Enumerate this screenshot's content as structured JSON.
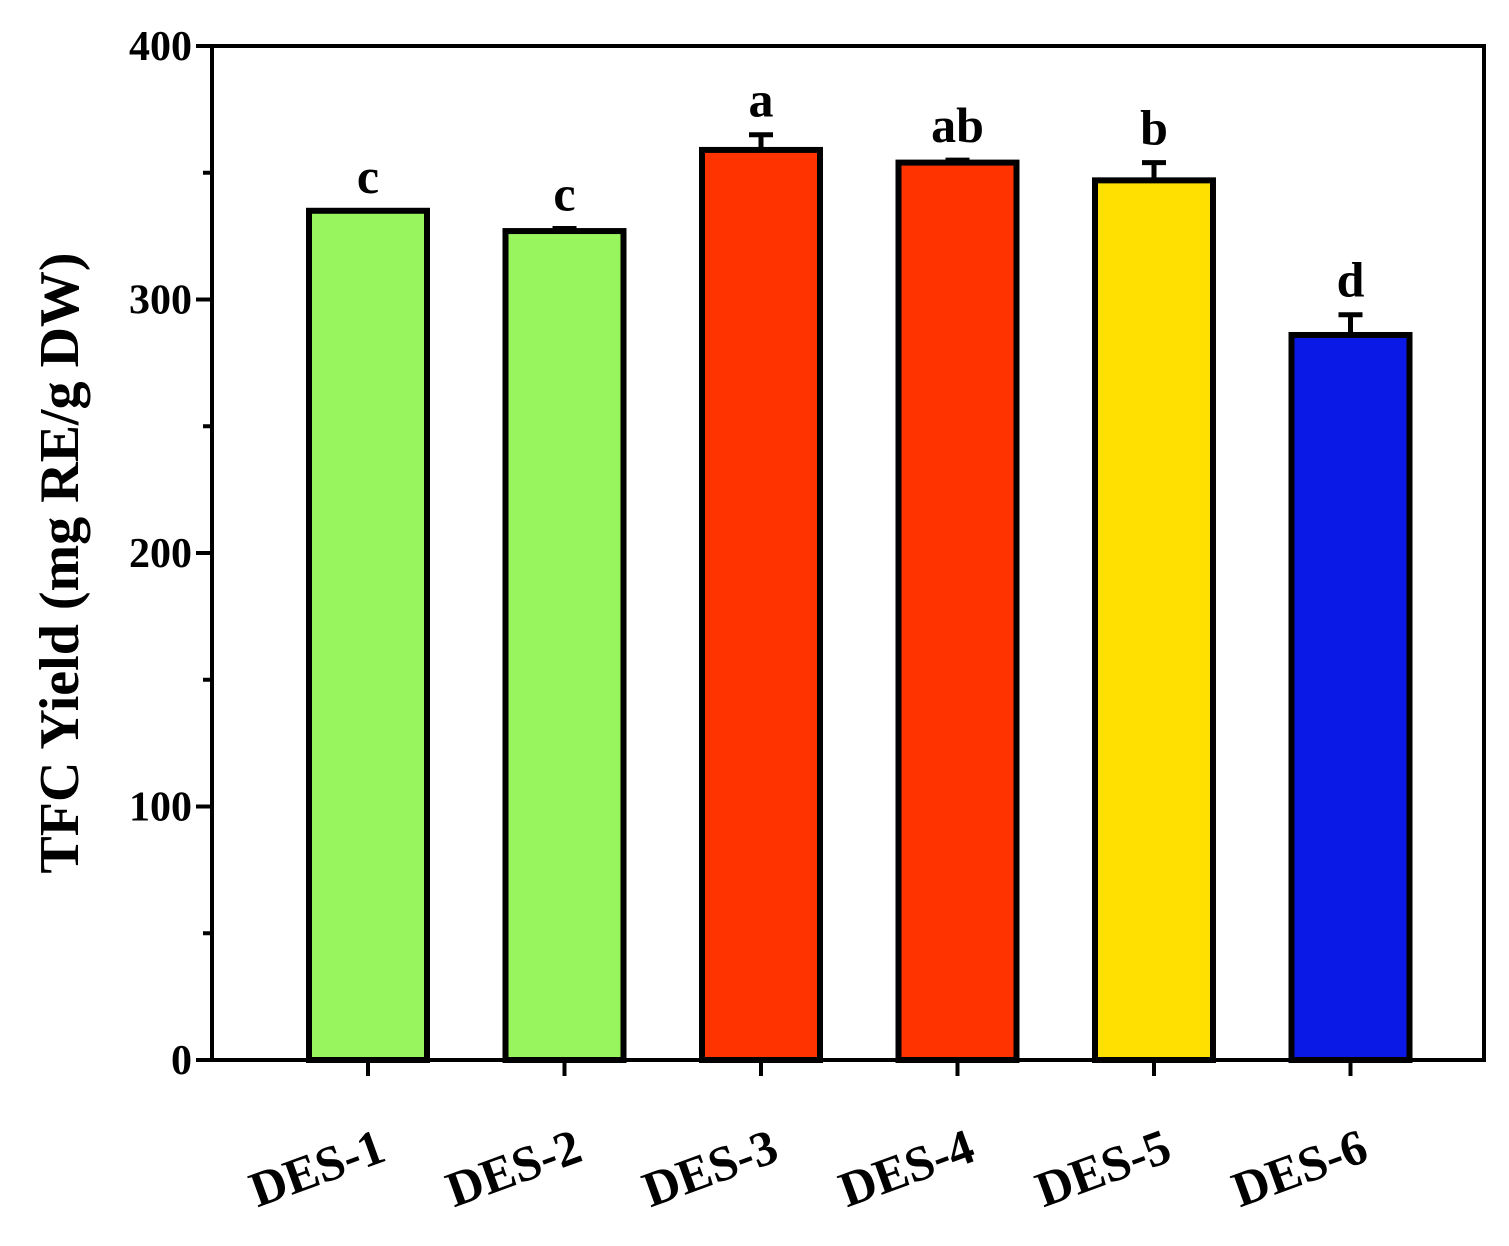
{
  "chart_data": {
    "type": "bar",
    "title": "",
    "xlabel": "",
    "ylabel": "TFC Yield (mg RE/g DW)",
    "ylim": [
      0,
      400
    ],
    "yticks": [
      0,
      100,
      200,
      300,
      400
    ],
    "grid": false,
    "legend": "none",
    "categories": [
      "DES-1",
      "DES-2",
      "DES-3",
      "DES-4",
      "DES-5",
      "DES-6"
    ],
    "values": [
      335,
      327,
      359,
      354,
      347,
      286
    ],
    "errors": [
      0,
      1,
      6,
      1,
      7,
      8
    ],
    "significance": [
      "c",
      "c",
      "a",
      "ab",
      "b",
      "d"
    ],
    "colors": [
      "#99F55E",
      "#99F55E",
      "#FF3300",
      "#FF3300",
      "#FFE000",
      "#0A19E6"
    ]
  }
}
